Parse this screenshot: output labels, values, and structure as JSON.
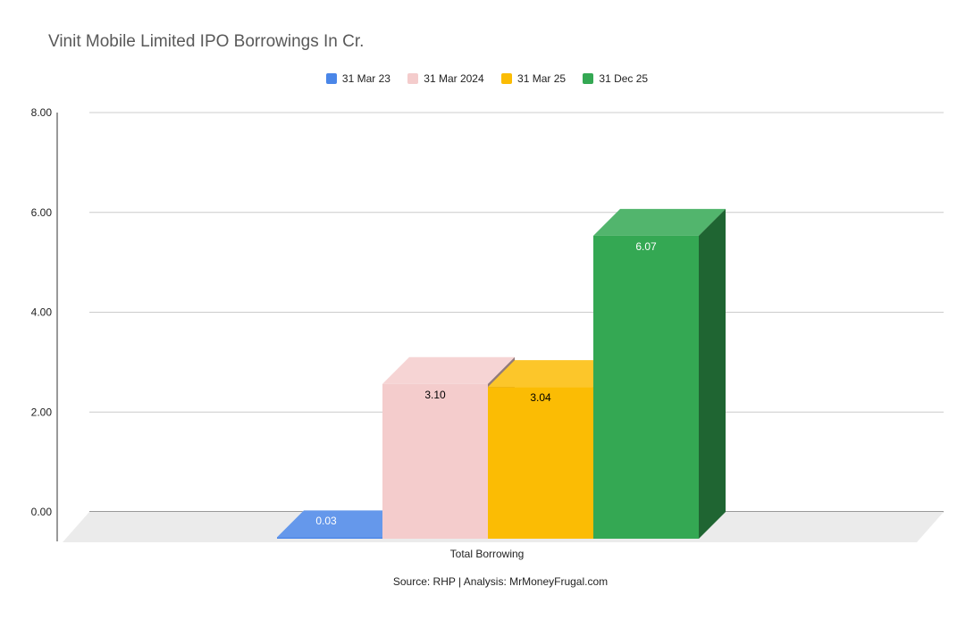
{
  "chart_data": {
    "type": "bar",
    "title": "Vinit Mobile Limited IPO Borrowings In Cr.",
    "categories": [
      "Total Borrowing"
    ],
    "series": [
      {
        "name": "31 Mar 23",
        "values": [
          0.03
        ],
        "color": "#4a86e8"
      },
      {
        "name": "31 Mar 2024",
        "values": [
          3.1
        ],
        "color": "#f4cccc"
      },
      {
        "name": "31 Mar 25",
        "values": [
          3.04
        ],
        "color": "#fbbc04"
      },
      {
        "name": "31 Dec 25",
        "values": [
          6.07
        ],
        "color": "#34a853"
      }
    ],
    "data_labels": [
      "0.03",
      "3.10",
      "3.04",
      "6.07"
    ],
    "yticks": [
      "0.00",
      "2.00",
      "4.00",
      "6.00",
      "8.00"
    ],
    "ylim": [
      0,
      8
    ],
    "xlabel": "",
    "ylabel": "",
    "grid": true,
    "legend_position": "top",
    "style": "3d"
  },
  "footer": {
    "source": "Source: RHP | Analysis: MrMoneyFrugal.com"
  }
}
